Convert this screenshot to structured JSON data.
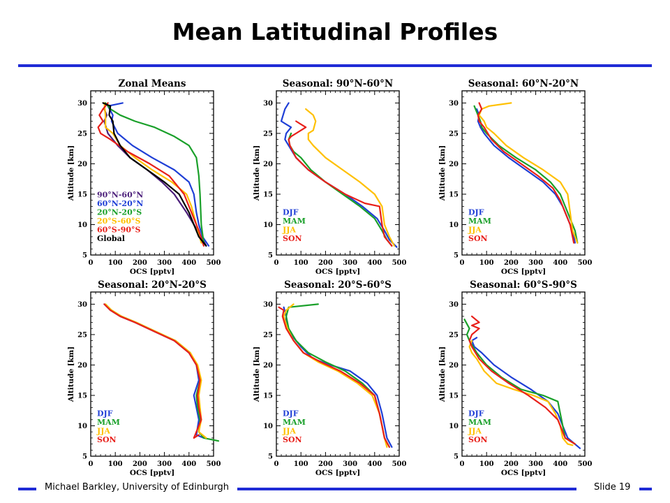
{
  "slide": {
    "title": "Mean Latitudinal Profiles",
    "author": "Michael Barkley, University of Edinburgh",
    "slide_number": "Slide 19",
    "accent_color": "#1f2bd6"
  },
  "chart_data": [
    {
      "type": "line",
      "title": "Zonal Means",
      "xlabel": "OCS [pptv]",
      "ylabel": "Altitude [km]",
      "xlim": [
        0,
        500
      ],
      "ylim": [
        5,
        32
      ],
      "xticks": [
        "0",
        "100",
        "200",
        "300",
        "400",
        "500"
      ],
      "yticks": [
        "5",
        "10",
        "15",
        "20",
        "25",
        "30"
      ],
      "legend_placement": "bottom-left",
      "series": [
        {
          "name": "90°N-60°N",
          "color": "#4b1e7a",
          "x": [
            60,
            55,
            65,
            55,
            70,
            110,
            160,
            230,
            290,
            340,
            390,
            420,
            450,
            470
          ],
          "y": [
            30,
            29,
            28,
            27,
            25,
            23,
            21,
            19,
            17,
            15,
            12,
            10,
            8,
            6.5
          ]
        },
        {
          "name": "60°N-20°N",
          "color": "#1f3fd6",
          "x": [
            130,
            70,
            90,
            85,
            110,
            170,
            250,
            340,
            400,
            420,
            430,
            440,
            455,
            480
          ],
          "y": [
            30,
            29.5,
            28,
            27,
            25,
            23,
            21,
            19,
            17,
            15,
            12,
            10,
            8,
            6.5
          ]
        },
        {
          "name": "20°N-20°S",
          "color": "#1aa02a",
          "x": [
            60,
            80,
            120,
            180,
            260,
            340,
            400,
            430,
            440,
            445,
            450,
            460
          ],
          "y": [
            30,
            29,
            28,
            27,
            26,
            24.5,
            23,
            21,
            18,
            15,
            10,
            7
          ]
        },
        {
          "name": "20°S-60°S",
          "color": "#ffc000",
          "x": [
            55,
            60,
            60,
            90,
            120,
            180,
            250,
            330,
            390,
            410,
            430,
            450
          ],
          "y": [
            30,
            28,
            26,
            25,
            23,
            21,
            19,
            17,
            15,
            13,
            10,
            7
          ]
        },
        {
          "name": "60°S-90°S",
          "color": "#e8201a",
          "x": [
            70,
            50,
            35,
            50,
            30,
            40,
            80,
            150,
            240,
            320,
            380,
            410,
            440,
            460
          ],
          "y": [
            30,
            29,
            28,
            27,
            26,
            25,
            24,
            22,
            20,
            18,
            15,
            12,
            9,
            6.5
          ]
        },
        {
          "name": "Global",
          "color": "#000000",
          "x": [
            50,
            80,
            75,
            90,
            95,
            120,
            160,
            230,
            300,
            360,
            400,
            420,
            440,
            470
          ],
          "y": [
            30,
            29.5,
            28,
            27,
            25,
            23,
            21,
            19,
            17,
            15,
            12,
            10,
            8,
            6.5
          ]
        }
      ]
    },
    {
      "type": "line",
      "title": "Seasonal: 90°N-60°N",
      "xlabel": "OCS [pptv]",
      "ylabel": "Altitude [km]",
      "xlim": [
        0,
        500
      ],
      "ylim": [
        5,
        32
      ],
      "xticks": [
        "0",
        "100",
        "200",
        "300",
        "400",
        "500"
      ],
      "yticks": [
        "5",
        "10",
        "15",
        "20",
        "25",
        "30"
      ],
      "legend_placement": "bottom-left",
      "series": [
        {
          "name": "DJF",
          "color": "#1f3fd6",
          "x": [
            50,
            35,
            20,
            40,
            60,
            40,
            35,
            50,
            80,
            130,
            200,
            280,
            350,
            410,
            440,
            460,
            490
          ],
          "y": [
            30,
            29,
            27,
            26.5,
            26,
            25,
            24,
            23,
            21,
            19,
            17,
            15,
            13,
            11,
            9,
            7.5,
            6.3
          ]
        },
        {
          "name": "MAM",
          "color": "#1aa02a",
          "x": [
            60,
            50,
            55,
            70,
            100,
            140,
            200,
            270,
            340,
            400,
            430,
            450,
            470
          ],
          "y": [
            25,
            24,
            23,
            22,
            21,
            19,
            17,
            15,
            13,
            11,
            9,
            7.5,
            6.5
          ]
        },
        {
          "name": "JJA",
          "color": "#ffc000",
          "x": [
            120,
            150,
            160,
            150,
            130,
            130,
            150,
            200,
            270,
            340,
            400,
            430,
            440,
            460,
            480
          ],
          "y": [
            29,
            28,
            27,
            25.5,
            25,
            24,
            23,
            21,
            19,
            17,
            15,
            13,
            10,
            8,
            6.5
          ]
        },
        {
          "name": "SON",
          "color": "#e8201a",
          "x": [
            80,
            100,
            120,
            100,
            80,
            60,
            50,
            55,
            80,
            130,
            200,
            280,
            360,
            420,
            430,
            440,
            470
          ],
          "y": [
            27,
            26.5,
            26,
            25.5,
            25,
            24.5,
            24,
            23,
            21,
            19,
            17,
            15,
            13.5,
            13,
            10,
            8,
            6.5
          ]
        }
      ]
    },
    {
      "type": "line",
      "title": "Seasonal: 60°N-20°N",
      "xlabel": "OCS [pptv]",
      "ylabel": "Altitude [km]",
      "xlim": [
        0,
        500
      ],
      "ylim": [
        5,
        32
      ],
      "xticks": [
        "0",
        "100",
        "200",
        "300",
        "400",
        "500"
      ],
      "yticks": [
        "5",
        "10",
        "15",
        "20",
        "25",
        "30"
      ],
      "legend_placement": "bottom-left",
      "series": [
        {
          "name": "DJF",
          "color": "#1f3fd6",
          "x": [
            60,
            70,
            65,
            75,
            90,
            130,
            190,
            260,
            330,
            380,
            410,
            430,
            450,
            460
          ],
          "y": [
            29,
            28,
            27,
            26,
            25,
            23,
            21,
            19,
            17,
            15,
            13,
            11,
            9,
            7
          ]
        },
        {
          "name": "MAM",
          "color": "#1aa02a",
          "x": [
            50,
            60,
            75,
            80,
            100,
            150,
            220,
            300,
            360,
            400,
            420,
            440,
            460,
            470
          ],
          "y": [
            29.5,
            28.5,
            27,
            26,
            25,
            23,
            21,
            19,
            17,
            15,
            13,
            11,
            9,
            7
          ]
        },
        {
          "name": "JJA",
          "color": "#ffc000",
          "x": [
            200,
            110,
            80,
            70,
            90,
            100,
            130,
            180,
            250,
            330,
            400,
            430,
            440,
            450,
            470
          ],
          "y": [
            30,
            29.5,
            29,
            28,
            27,
            26,
            25,
            23,
            21,
            19,
            17,
            15,
            12,
            9,
            7
          ]
        },
        {
          "name": "SON",
          "color": "#e8201a",
          "x": [
            70,
            80,
            65,
            70,
            90,
            120,
            170,
            240,
            310,
            370,
            400,
            420,
            440,
            450,
            455
          ],
          "y": [
            30,
            29,
            28,
            27,
            26,
            24,
            22,
            20,
            18,
            16,
            14,
            12,
            10,
            8,
            7
          ]
        }
      ]
    },
    {
      "type": "line",
      "title": "Seasonal: 20°N-20°S",
      "xlabel": "OCS [pptv]",
      "ylabel": "Altitude [km]",
      "xlim": [
        0,
        500
      ],
      "ylim": [
        5,
        32
      ],
      "xticks": [
        "0",
        "100",
        "200",
        "300",
        "400",
        "500"
      ],
      "yticks": [
        "5",
        "10",
        "15",
        "20",
        "25",
        "30"
      ],
      "legend_placement": "bottom-left",
      "series": [
        {
          "name": "DJF",
          "color": "#1f3fd6",
          "x": [
            55,
            80,
            120,
            180,
            260,
            340,
            400,
            430,
            440,
            420,
            430,
            440,
            430,
            460
          ],
          "y": [
            30,
            29,
            28,
            27,
            25.5,
            24,
            22,
            20,
            17.5,
            15,
            13,
            11,
            8.5,
            8
          ]
        },
        {
          "name": "MAM",
          "color": "#1aa02a",
          "x": [
            60,
            85,
            125,
            185,
            265,
            345,
            405,
            430,
            445,
            430,
            435,
            445,
            440,
            460,
            520
          ],
          "y": [
            30,
            29,
            28,
            27,
            25.5,
            24,
            22,
            20,
            17.5,
            15,
            13,
            11,
            9,
            8,
            7.5
          ]
        },
        {
          "name": "JJA",
          "color": "#ffc000",
          "x": [
            60,
            85,
            125,
            185,
            265,
            345,
            405,
            435,
            450,
            440,
            445,
            450,
            440,
            470
          ],
          "y": [
            30,
            29,
            28,
            27,
            25.5,
            24,
            22,
            20,
            17.5,
            15,
            13,
            11,
            9,
            8
          ]
        },
        {
          "name": "SON",
          "color": "#e8201a",
          "x": [
            55,
            80,
            120,
            180,
            260,
            340,
            400,
            430,
            445,
            435,
            440,
            450,
            420,
            440
          ],
          "y": [
            30,
            29,
            28,
            27,
            25.5,
            24,
            22,
            20,
            17.5,
            15,
            13,
            11,
            8,
            8.5
          ]
        }
      ]
    },
    {
      "type": "line",
      "title": "Seasonal: 20°S-60°S",
      "xlabel": "OCS [pptv]",
      "ylabel": "Altitude [km]",
      "xlim": [
        0,
        500
      ],
      "ylim": [
        5,
        32
      ],
      "xticks": [
        "0",
        "100",
        "200",
        "300",
        "400",
        "500"
      ],
      "yticks": [
        "5",
        "10",
        "15",
        "20",
        "25",
        "30"
      ],
      "legend_placement": "bottom-left",
      "series": [
        {
          "name": "DJF",
          "color": "#1f3fd6",
          "x": [
            30,
            40,
            40,
            60,
            100,
            150,
            220,
            300,
            370,
            410,
            430,
            440,
            450,
            470
          ],
          "y": [
            29.5,
            28,
            27,
            25,
            23,
            21,
            20,
            19,
            17,
            15,
            12,
            10,
            8,
            6.5
          ]
        },
        {
          "name": "MAM",
          "color": "#1aa02a",
          "x": [
            170,
            50,
            40,
            50,
            80,
            130,
            200,
            280,
            350,
            400,
            420,
            430,
            440,
            460
          ],
          "y": [
            30,
            29.5,
            28,
            26,
            24,
            22,
            20.5,
            19,
            17,
            15,
            12,
            10,
            8,
            6.5
          ]
        },
        {
          "name": "JJA",
          "color": "#ffc000",
          "x": [
            70,
            40,
            30,
            45,
            70,
            110,
            170,
            250,
            330,
            390,
            420,
            430,
            440,
            450
          ],
          "y": [
            30,
            29,
            28,
            26,
            24,
            22,
            20.5,
            19,
            17,
            15,
            12,
            10,
            8,
            6.5
          ]
        },
        {
          "name": "SON",
          "color": "#e8201a",
          "x": [
            10,
            30,
            25,
            40,
            70,
            110,
            180,
            260,
            340,
            400,
            420,
            430,
            440,
            460
          ],
          "y": [
            29.5,
            29,
            28,
            26,
            24,
            22,
            20.5,
            19,
            17,
            15,
            12,
            10,
            8,
            6.5
          ]
        }
      ]
    },
    {
      "type": "line",
      "title": "Seasonal: 60°S-90°S",
      "xlabel": "OCS [pptv]",
      "ylabel": "Altitude [km]",
      "xlim": [
        0,
        500
      ],
      "ylim": [
        5,
        32
      ],
      "xticks": [
        "0",
        "100",
        "200",
        "300",
        "400",
        "500"
      ],
      "yticks": [
        "5",
        "10",
        "15",
        "20",
        "25",
        "30"
      ],
      "legend_placement": "bottom-left",
      "series": [
        {
          "name": "DJF",
          "color": "#1f3fd6",
          "x": [
            60,
            40,
            50,
            80,
            130,
            200,
            280,
            350,
            390,
            410,
            430,
            480
          ],
          "y": [
            24.5,
            24,
            23,
            22,
            20,
            18,
            16,
            14,
            12,
            10,
            8,
            6.3
          ]
        },
        {
          "name": "MAM",
          "color": "#1aa02a",
          "x": [
            10,
            30,
            20,
            30,
            60,
            100,
            160,
            240,
            330,
            390,
            400,
            410,
            420,
            460
          ],
          "y": [
            27.5,
            26,
            25,
            24,
            22,
            20,
            18,
            16,
            15,
            14,
            12,
            10,
            8,
            7
          ]
        },
        {
          "name": "JJA",
          "color": "#ffc000",
          "x": [
            40,
            30,
            40,
            60,
            90,
            140,
            210,
            290,
            350,
            380,
            400,
            410,
            430,
            450
          ],
          "y": [
            24,
            23,
            22,
            21,
            19,
            17,
            16,
            15,
            14,
            12,
            10,
            8,
            7,
            6.8
          ]
        },
        {
          "name": "SON",
          "color": "#e8201a",
          "x": [
            40,
            70,
            40,
            70,
            40,
            30,
            40,
            70,
            120,
            190,
            270,
            340,
            390,
            410,
            420,
            460
          ],
          "y": [
            28,
            27,
            26.5,
            26,
            25,
            24,
            23,
            21,
            19,
            17,
            15,
            13,
            11,
            9,
            8,
            7
          ]
        }
      ]
    }
  ]
}
